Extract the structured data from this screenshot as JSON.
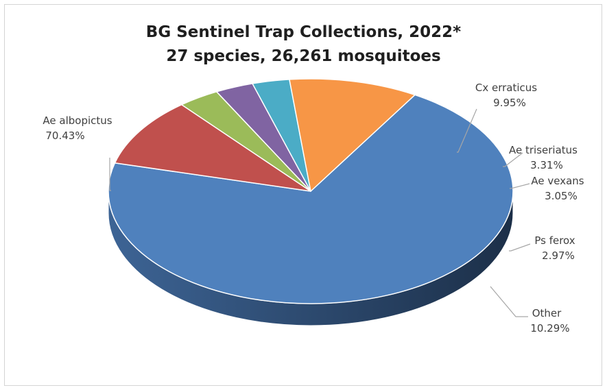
{
  "chart_data": {
    "type": "pie",
    "title": "BG Sentinel Trap Collections, 2022*",
    "subtitle": "27 species, 26,261 mosquitoes",
    "slices": [
      {
        "name": "Ae albopictus",
        "label": "70.43%",
        "value": 70.43,
        "color": "#4f81bd"
      },
      {
        "name": "Cx erraticus",
        "label": "9.95%",
        "value": 9.95,
        "color": "#c0504d"
      },
      {
        "name": "Ae triseriatus",
        "label": "3.31%",
        "value": 3.31,
        "color": "#9bbb59"
      },
      {
        "name": "Ae vexans",
        "label": "3.05%",
        "value": 3.05,
        "color": "#8064a2"
      },
      {
        "name": "Ps ferox",
        "label": "2.97%",
        "value": 2.97,
        "color": "#4bacc6"
      },
      {
        "name": "Other",
        "label": "10.29%",
        "value": 10.29,
        "color": "#f79646"
      }
    ]
  }
}
